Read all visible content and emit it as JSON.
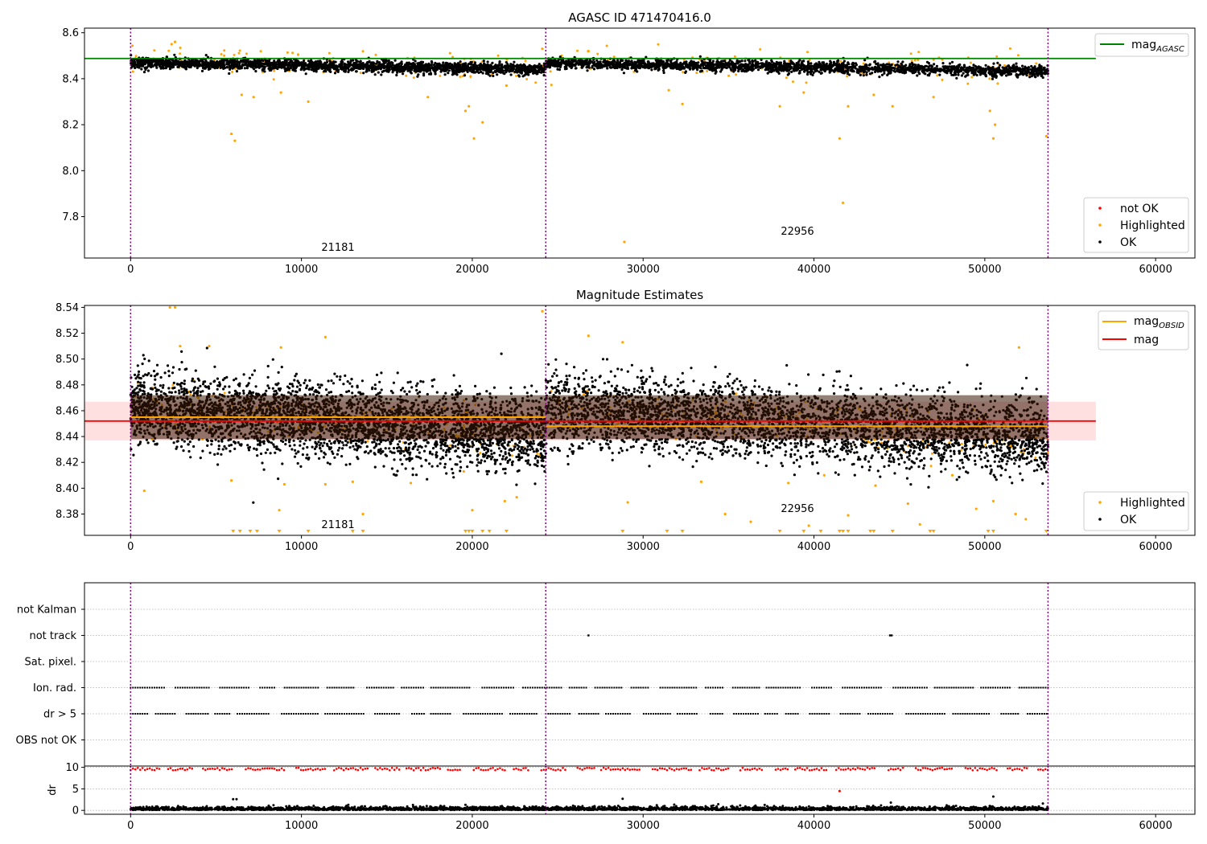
{
  "chart_data": [
    {
      "type": "scatter",
      "title": "AGASC ID 471470416.0",
      "xlim": [
        -2700,
        62300
      ],
      "ylim": [
        7.62,
        8.62
      ],
      "xticks": [
        0,
        10000,
        20000,
        30000,
        40000,
        50000,
        60000
      ],
      "xtick_labels": [
        "0",
        "10000",
        "20000",
        "30000",
        "40000",
        "50000",
        "60000"
      ],
      "yticks": [
        7.8,
        8.0,
        8.2,
        8.4,
        8.6
      ],
      "ytick_labels": [
        "7.8",
        "8.0",
        "8.2",
        "8.4",
        "8.6"
      ],
      "obs_boundaries": [
        0,
        24300,
        53700
      ],
      "obsid_labels": [
        {
          "text": "21181",
          "x": 12100,
          "y": 7.64
        },
        {
          "text": "22956",
          "x": 38950,
          "y": 7.71
        }
      ],
      "lines": [
        {
          "name": "mag_AGASC",
          "value": 8.488,
          "color": "#008000",
          "x_range": [
            -2700,
            56500
          ]
        }
      ],
      "series": [
        {
          "name": "OK",
          "color": "#000000",
          "segments": [
            {
              "x": [
                0,
                24300
              ],
              "center": [
                8.47,
                8.44
              ],
              "spread": 0.012
            },
            {
              "x": [
                24300,
                53700
              ],
              "center": [
                8.468,
                8.432
              ],
              "spread": 0.012
            }
          ]
        },
        {
          "name": "Highlighted",
          "color": "#ffa500",
          "outliers": [
            [
              2400,
              8.55
            ],
            [
              2600,
              8.56
            ],
            [
              5900,
              8.16
            ],
            [
              6100,
              8.13
            ],
            [
              6500,
              8.33
            ],
            [
              7200,
              8.32
            ],
            [
              8800,
              8.34
            ],
            [
              10400,
              8.3
            ],
            [
              17400,
              8.32
            ],
            [
              19600,
              8.26
            ],
            [
              19800,
              8.28
            ],
            [
              20100,
              8.14
            ],
            [
              20600,
              8.21
            ],
            [
              22000,
              8.37
            ],
            [
              28900,
              7.69
            ],
            [
              31500,
              8.35
            ],
            [
              32300,
              8.29
            ],
            [
              38000,
              8.28
            ],
            [
              39400,
              8.34
            ],
            [
              41500,
              8.14
            ],
            [
              41700,
              7.86
            ],
            [
              42000,
              8.28
            ],
            [
              43500,
              8.33
            ],
            [
              44600,
              8.28
            ],
            [
              47000,
              8.32
            ],
            [
              50300,
              8.26
            ],
            [
              50500,
              8.14
            ],
            [
              50600,
              8.2
            ],
            [
              53600,
              8.15
            ],
            [
              24100,
              8.53
            ],
            [
              26800,
              8.52
            ]
          ]
        },
        {
          "name": "not OK",
          "color": "#ff0000",
          "outliers": []
        }
      ],
      "legend": {
        "lines": [
          "mag_AGASC"
        ],
        "markers": [
          "not OK",
          "Highlighted",
          "OK"
        ],
        "line_placement": "top-right",
        "marker_placement": "lower-right"
      }
    },
    {
      "type": "scatter",
      "title": "Magnitude Estimates",
      "xlim": [
        -2700,
        62300
      ],
      "ylim": [
        8.3635,
        8.5415
      ],
      "xticks": [
        0,
        10000,
        20000,
        30000,
        40000,
        50000,
        60000
      ],
      "xtick_labels": [
        "0",
        "10000",
        "20000",
        "30000",
        "40000",
        "50000",
        "60000"
      ],
      "yticks": [
        8.38,
        8.4,
        8.42,
        8.44,
        8.46,
        8.48,
        8.5,
        8.52,
        8.54
      ],
      "ytick_labels": [
        "8.38",
        "8.40",
        "8.42",
        "8.44",
        "8.46",
        "8.48",
        "8.50",
        "8.52",
        "8.54"
      ],
      "obs_boundaries": [
        0,
        24300,
        53700
      ],
      "obsid_labels": [
        {
          "text": "21181",
          "x": 12100,
          "y": 8.366
        },
        {
          "text": "22956",
          "x": 38950,
          "y": 8.382
        }
      ],
      "mag": {
        "value": 8.452,
        "band": [
          8.437,
          8.467
        ],
        "color": "#ff0000",
        "x_range": [
          -2700,
          56500
        ]
      },
      "mag_obsid": [
        {
          "x": [
            0,
            24300
          ],
          "value": 8.455
        },
        {
          "x": [
            24300,
            53700
          ],
          "value": 8.448
        }
      ],
      "series": [
        {
          "name": "OK",
          "color": "#000000",
          "segments": [
            {
              "x": [
                0,
                24300
              ],
              "center": [
                8.462,
                8.442
              ],
              "spread": 0.014
            },
            {
              "x": [
                24300,
                53700
              ],
              "center": [
                8.462,
                8.438
              ],
              "spread": 0.014
            }
          ]
        },
        {
          "name": "Highlighted",
          "color": "#ffa500",
          "outliers": [
            [
              800,
              8.398
            ],
            [
              2300,
              8.54
            ],
            [
              2600,
              8.54
            ],
            [
              5900,
              8.406
            ],
            [
              8700,
              8.383
            ],
            [
              9000,
              8.403
            ],
            [
              11400,
              8.403
            ],
            [
              13000,
              8.405
            ],
            [
              13600,
              8.38
            ],
            [
              16400,
              8.404
            ],
            [
              19500,
              8.413
            ],
            [
              20000,
              8.383
            ],
            [
              21900,
              8.39
            ],
            [
              22600,
              8.393
            ],
            [
              24100,
              8.537
            ],
            [
              29100,
              8.389
            ],
            [
              33400,
              8.405
            ],
            [
              34800,
              8.38
            ],
            [
              36300,
              8.374
            ],
            [
              38500,
              8.404
            ],
            [
              39700,
              8.371
            ],
            [
              40600,
              8.41
            ],
            [
              42000,
              8.379
            ],
            [
              43600,
              8.402
            ],
            [
              45500,
              8.388
            ],
            [
              46200,
              8.372
            ],
            [
              48100,
              8.41
            ],
            [
              49500,
              8.384
            ],
            [
              50500,
              8.39
            ],
            [
              51800,
              8.38
            ],
            [
              52400,
              8.376
            ],
            [
              2900,
              8.51
            ],
            [
              4600,
              8.51
            ],
            [
              8800,
              8.509
            ],
            [
              11400,
              8.517
            ],
            [
              26800,
              8.518
            ],
            [
              28800,
              8.513
            ],
            [
              52000,
              8.509
            ]
          ]
        }
      ],
      "down_markers_x": [
        6000,
        6400,
        7000,
        7400,
        8700,
        10400,
        13000,
        13600,
        19600,
        19800,
        20000,
        20600,
        21000,
        22000,
        28800,
        31400,
        32300,
        38000,
        39400,
        40400,
        41500,
        41700,
        42000,
        43300,
        43500,
        44600,
        46800,
        47000,
        50200,
        50500,
        53600
      ],
      "legend": {
        "lines": [
          "mag_OBSID",
          "mag"
        ],
        "markers": [
          "Highlighted",
          "OK"
        ],
        "line_placement": "top-right",
        "marker_placement": "lower-right"
      }
    },
    {
      "type": "scatter",
      "title": "",
      "xlim": [
        -2700,
        62300
      ],
      "xticks": [
        0,
        10000,
        20000,
        30000,
        40000,
        50000,
        60000
      ],
      "xtick_labels": [
        "0",
        "10000",
        "20000",
        "30000",
        "40000",
        "50000",
        "60000"
      ],
      "flag_rows": [
        "not Kalman",
        "not track",
        "Sat. pixel.",
        "Ion. rad.",
        "dr > 5",
        "OBS not OK"
      ],
      "flag_points": {
        "not track": [
          26800,
          44450,
          44550
        ],
        "Ion. rad.": "periodic",
        "dr > 5": "periodic"
      },
      "obs_boundaries": [
        0,
        24300,
        53700
      ]
    },
    {
      "type": "scatter",
      "title": "",
      "ylabel": "dr",
      "xlim": [
        -2700,
        62300
      ],
      "ylim": [
        -0.9,
        10.3
      ],
      "yticks": [
        0,
        5,
        10
      ],
      "ytick_labels": [
        "0",
        "5",
        "10"
      ],
      "xticks": [
        0,
        10000,
        20000,
        30000,
        40000,
        50000,
        60000
      ],
      "xtick_labels": [
        "0",
        "10000",
        "20000",
        "30000",
        "40000",
        "50000",
        "60000"
      ],
      "obs_boundaries": [
        0,
        24300,
        53700
      ],
      "series": [
        {
          "name": "OK",
          "color": "#000000",
          "typical": 0.5
        },
        {
          "name": "not OK",
          "color": "#ff0000",
          "typical": 9.6
        }
      ]
    }
  ],
  "legend_labels": {
    "mag_agasc": "mag",
    "mag_agasc_sub": "AGASC",
    "mag_obsid": "mag",
    "mag_obsid_sub": "OBSID",
    "mag": "mag",
    "not_ok": "not OK",
    "highlighted": "Highlighted",
    "ok": "OK"
  }
}
